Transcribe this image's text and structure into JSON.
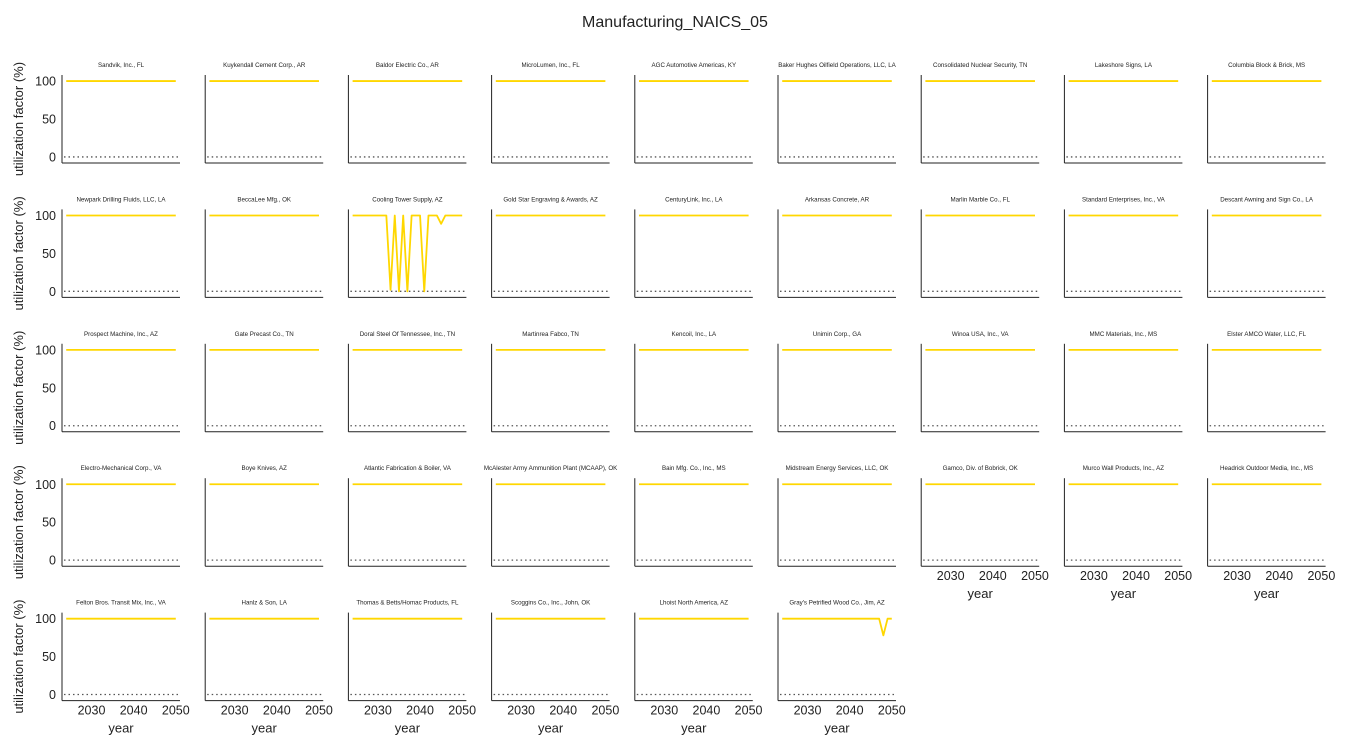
{
  "chart_data": {
    "type": "line",
    "title": "Manufacturing_NAICS_05",
    "xlabel": "year",
    "ylabel": "utilization factor (%)",
    "xlim": [
      2023,
      2051
    ],
    "ylim": [
      -8,
      108
    ],
    "xticks": [
      2030,
      2040,
      2050
    ],
    "yticks": [
      0,
      50,
      100
    ],
    "line_color": "#ffd700",
    "baseline_color": "#555555",
    "baseline_value": 0,
    "baseline_style": "dotted",
    "grid": false,
    "layout": {
      "rows": 5,
      "cols": 9
    },
    "x": [
      2024,
      2025,
      2026,
      2027,
      2028,
      2029,
      2030,
      2031,
      2032,
      2033,
      2034,
      2035,
      2036,
      2037,
      2038,
      2039,
      2040,
      2041,
      2042,
      2043,
      2044,
      2045,
      2046,
      2047,
      2048,
      2049,
      2050
    ],
    "panels": [
      {
        "title": "Sandvik, Inc., FL",
        "values": "constant_100"
      },
      {
        "title": "Kuykendall Cement Corp., AR",
        "values": "constant_100"
      },
      {
        "title": "Baldor Electric Co., AR",
        "values": "constant_100"
      },
      {
        "title": "MicroLumen, Inc., FL",
        "values": "constant_100"
      },
      {
        "title": "AGC Automotive Americas, KY",
        "values": "constant_100"
      },
      {
        "title": "Baker Hughes Oilfield Operations, LLC, LA",
        "values": "constant_100"
      },
      {
        "title": "Consolidated Nuclear Security, TN",
        "values": "constant_100"
      },
      {
        "title": "Lakeshore Signs, LA",
        "values": "constant_100"
      },
      {
        "title": "Columbia Block & Brick, MS",
        "values": "constant_100"
      },
      {
        "title": "Newpark Drilling Fluids, LLC, LA",
        "values": "constant_100"
      },
      {
        "title": "BeccaLee Mfg., OK",
        "values": "constant_100"
      },
      {
        "title": "Cooling Tower Supply, AZ",
        "values": [
          100,
          100,
          100,
          100,
          100,
          100,
          100,
          100,
          100,
          2,
          100,
          0,
          100,
          0,
          100,
          100,
          100,
          0,
          100,
          100,
          100,
          89,
          100,
          100,
          100,
          100,
          100
        ]
      },
      {
        "title": "Gold Star Engraving & Awards, AZ",
        "values": "constant_100"
      },
      {
        "title": "CenturyLink, Inc., LA",
        "values": "constant_100"
      },
      {
        "title": "Arkansas Concrete, AR",
        "values": "constant_100"
      },
      {
        "title": "Marlin Marble Co., FL",
        "values": "constant_100"
      },
      {
        "title": "Standard Enterprises, Inc., VA",
        "values": "constant_100"
      },
      {
        "title": "Descant Awning and Sign Co., LA",
        "values": "constant_100"
      },
      {
        "title": "Prospect Machine, Inc., AZ",
        "values": "constant_100"
      },
      {
        "title": "Gate Precast Co., TN",
        "values": "constant_100"
      },
      {
        "title": "Doral Steel Of Tennessee, Inc., TN",
        "values": "constant_100"
      },
      {
        "title": "Martinrea Fabco, TN",
        "values": "constant_100"
      },
      {
        "title": "Kencoil, Inc., LA",
        "values": "constant_100"
      },
      {
        "title": "Unimin Corp., GA",
        "values": "constant_100"
      },
      {
        "title": "Winoa USA, Inc., VA",
        "values": "constant_100"
      },
      {
        "title": "MMC Materials, Inc., MS",
        "values": "constant_100"
      },
      {
        "title": "Elster AMCO Water, LLC, FL",
        "values": "constant_100"
      },
      {
        "title": "Electro-Mechanical Corp., VA",
        "values": "constant_100"
      },
      {
        "title": "Boye Knives, AZ",
        "values": "constant_100"
      },
      {
        "title": "Atlantic Fabrication & Boiler, VA",
        "values": "constant_100"
      },
      {
        "title": "McAlester Army Ammunition Plant (MCAAP), OK",
        "values": "constant_100"
      },
      {
        "title": "Bain Mfg. Co., Inc., MS",
        "values": "constant_100"
      },
      {
        "title": "Midstream Energy Services, LLC, OK",
        "values": "constant_100"
      },
      {
        "title": "Gamco, Div. of Bobrick, OK",
        "values": "constant_100"
      },
      {
        "title": "Murco Wall Products, Inc., AZ",
        "values": "constant_100"
      },
      {
        "title": "Headrick Outdoor Media, Inc., MS",
        "values": "constant_100"
      },
      {
        "title": "Felton Bros. Transit Mix, Inc., VA",
        "values": "constant_100"
      },
      {
        "title": "Hanlz & Son, LA",
        "values": "constant_100"
      },
      {
        "title": "Thomas & Betts/Homac Products, FL",
        "values": "constant_100"
      },
      {
        "title": "Scoggins Co., Inc., John, OK",
        "values": "constant_100"
      },
      {
        "title": "Lhoist North America, AZ",
        "values": "constant_100"
      },
      {
        "title": "Gray's Petrified Wood Co., Jim, AZ",
        "values": [
          100,
          100,
          100,
          100,
          100,
          100,
          100,
          100,
          100,
          100,
          100,
          100,
          100,
          100,
          100,
          100,
          100,
          100,
          100,
          100,
          100,
          100,
          100,
          100,
          78,
          100,
          100
        ]
      }
    ]
  }
}
